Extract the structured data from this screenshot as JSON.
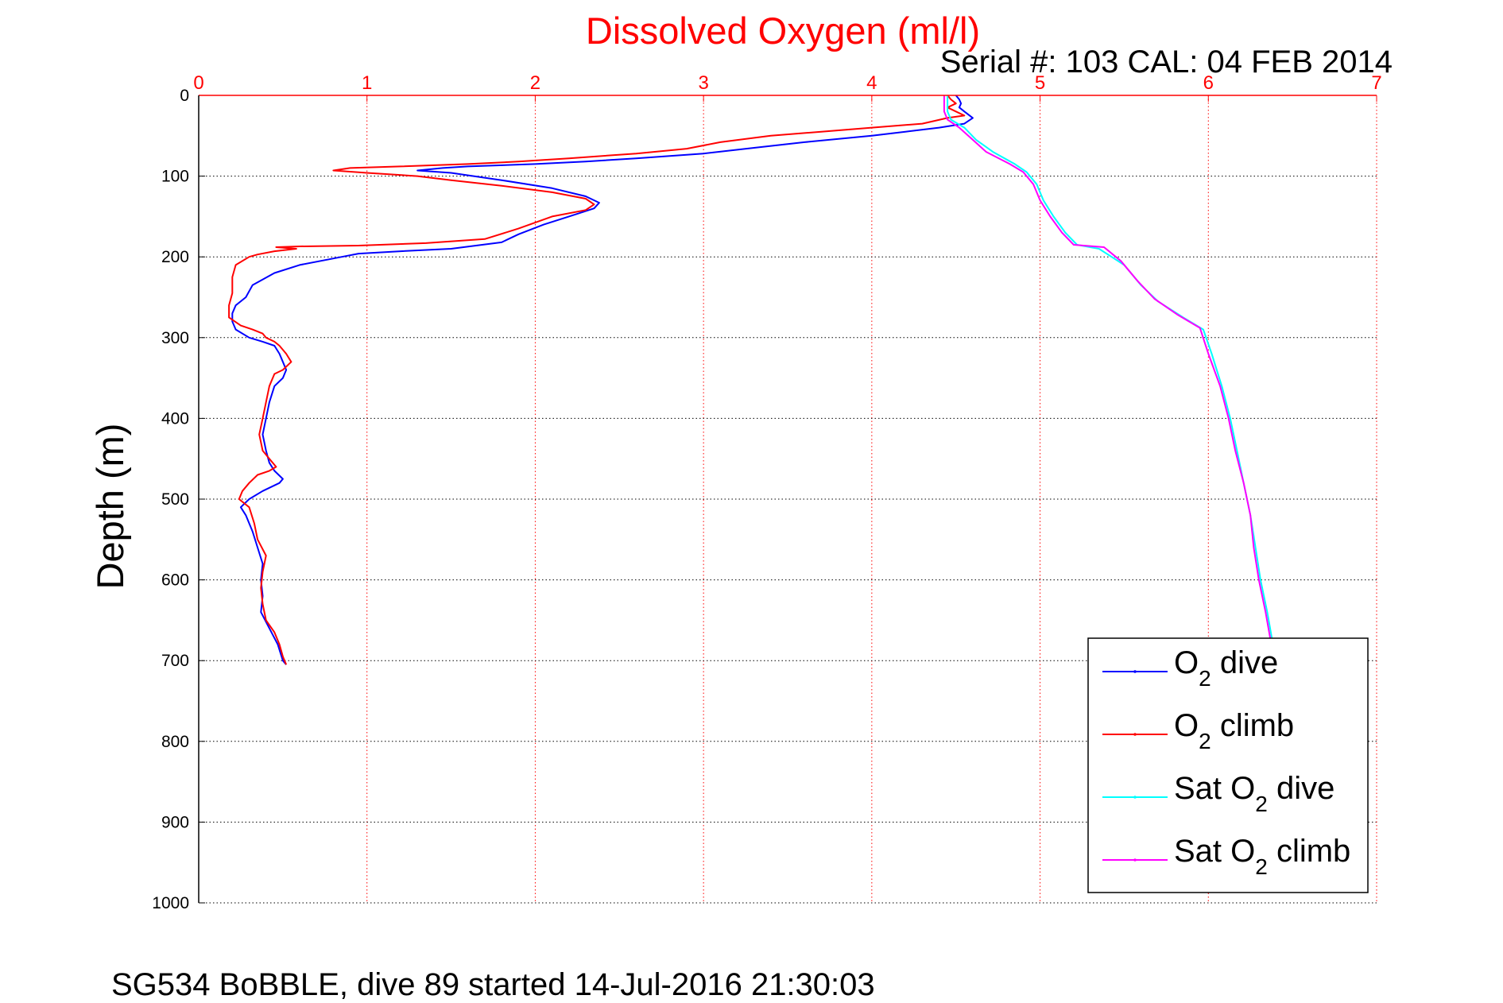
{
  "chart_data": {
    "type": "line",
    "title": "Dissolved Oxygen (ml/l)",
    "subtitle": "Serial #: 103  CAL: 04 FEB 2014",
    "footer": "SG534 BoBBLE, dive 89 started 14-Jul-2016 21:30:03",
    "xlabel": "",
    "ylabel": "Depth (m)",
    "x_axis_position": "top",
    "y_axis_reversed": true,
    "xlim": [
      0,
      7
    ],
    "ylim": [
      0,
      1000
    ],
    "x_ticks": [
      "0",
      "1",
      "2",
      "3",
      "4",
      "5",
      "6",
      "7"
    ],
    "y_ticks": [
      "0",
      "100",
      "200",
      "300",
      "400",
      "500",
      "600",
      "700",
      "800",
      "900",
      "1000"
    ],
    "grid": true,
    "legend_position": "bottom-right",
    "colors": {
      "title": "#ff0000",
      "x_axis": "#ff0000",
      "y_axis": "#000000",
      "o2_dive": "#0000ff",
      "o2_climb": "#ff0000",
      "sat_dive": "#00ffff",
      "sat_climb": "#ff00ff"
    },
    "series": [
      {
        "key": "o2_dive",
        "legend_main": "O",
        "legend_sub": "2",
        "legend_rest": " dive",
        "color": "#0000ff",
        "points": [
          [
            4.5,
            0
          ],
          [
            4.52,
            5
          ],
          [
            4.53,
            10
          ],
          [
            4.52,
            15
          ],
          [
            4.55,
            20
          ],
          [
            4.6,
            28
          ],
          [
            4.55,
            35
          ],
          [
            4.4,
            40
          ],
          [
            4.2,
            45
          ],
          [
            4.0,
            50
          ],
          [
            3.6,
            58
          ],
          [
            3.3,
            65
          ],
          [
            3.0,
            72
          ],
          [
            2.6,
            78
          ],
          [
            2.3,
            82
          ],
          [
            2.0,
            85
          ],
          [
            1.6,
            88
          ],
          [
            1.45,
            90
          ],
          [
            1.3,
            93
          ],
          [
            1.5,
            96
          ],
          [
            1.8,
            105
          ],
          [
            2.1,
            115
          ],
          [
            2.3,
            125
          ],
          [
            2.38,
            133
          ],
          [
            2.35,
            140
          ],
          [
            2.2,
            150
          ],
          [
            2.05,
            160
          ],
          [
            1.9,
            172
          ],
          [
            1.8,
            182
          ],
          [
            1.5,
            190
          ],
          [
            1.2,
            193
          ],
          [
            0.95,
            196
          ],
          [
            0.85,
            200
          ],
          [
            0.6,
            210
          ],
          [
            0.45,
            220
          ],
          [
            0.32,
            235
          ],
          [
            0.28,
            250
          ],
          [
            0.22,
            260
          ],
          [
            0.2,
            270
          ],
          [
            0.2,
            280
          ],
          [
            0.22,
            290
          ],
          [
            0.3,
            300
          ],
          [
            0.38,
            305
          ],
          [
            0.45,
            310
          ],
          [
            0.48,
            320
          ],
          [
            0.5,
            330
          ],
          [
            0.52,
            340
          ],
          [
            0.5,
            350
          ],
          [
            0.45,
            360
          ],
          [
            0.42,
            380
          ],
          [
            0.4,
            400
          ],
          [
            0.38,
            420
          ],
          [
            0.4,
            440
          ],
          [
            0.42,
            455
          ],
          [
            0.45,
            465
          ],
          [
            0.5,
            475
          ],
          [
            0.48,
            480
          ],
          [
            0.38,
            490
          ],
          [
            0.3,
            500
          ],
          [
            0.25,
            510
          ],
          [
            0.28,
            520
          ],
          [
            0.32,
            540
          ],
          [
            0.35,
            560
          ],
          [
            0.38,
            580
          ],
          [
            0.37,
            600
          ],
          [
            0.38,
            620
          ],
          [
            0.37,
            640
          ],
          [
            0.42,
            660
          ],
          [
            0.47,
            680
          ],
          [
            0.5,
            700
          ],
          [
            0.52,
            705
          ]
        ]
      },
      {
        "key": "o2_climb",
        "legend_main": "O",
        "legend_sub": "2",
        "legend_rest": " climb",
        "color": "#ff0000",
        "points": [
          [
            4.45,
            0
          ],
          [
            4.47,
            5
          ],
          [
            4.5,
            10
          ],
          [
            4.45,
            15
          ],
          [
            4.5,
            20
          ],
          [
            4.55,
            25
          ],
          [
            4.45,
            28
          ],
          [
            4.3,
            35
          ],
          [
            4.0,
            40
          ],
          [
            3.7,
            45
          ],
          [
            3.4,
            50
          ],
          [
            3.1,
            58
          ],
          [
            2.9,
            66
          ],
          [
            2.6,
            72
          ],
          [
            2.2,
            78
          ],
          [
            1.9,
            82
          ],
          [
            1.6,
            85
          ],
          [
            1.2,
            88
          ],
          [
            0.9,
            90
          ],
          [
            0.8,
            93
          ],
          [
            1.0,
            96
          ],
          [
            1.3,
            100
          ],
          [
            1.5,
            105
          ],
          [
            1.8,
            112
          ],
          [
            2.1,
            120
          ],
          [
            2.3,
            128
          ],
          [
            2.35,
            135
          ],
          [
            2.3,
            142
          ],
          [
            2.1,
            150
          ],
          [
            1.9,
            165
          ],
          [
            1.7,
            178
          ],
          [
            1.35,
            183
          ],
          [
            0.95,
            186
          ],
          [
            0.6,
            187
          ],
          [
            0.46,
            188
          ],
          [
            0.58,
            190
          ],
          [
            0.45,
            193
          ],
          [
            0.35,
            197
          ],
          [
            0.3,
            200
          ],
          [
            0.22,
            210
          ],
          [
            0.2,
            225
          ],
          [
            0.2,
            245
          ],
          [
            0.18,
            260
          ],
          [
            0.18,
            275
          ],
          [
            0.25,
            285
          ],
          [
            0.32,
            290
          ],
          [
            0.38,
            295
          ],
          [
            0.4,
            300
          ],
          [
            0.45,
            305
          ],
          [
            0.48,
            310
          ],
          [
            0.52,
            320
          ],
          [
            0.55,
            330
          ],
          [
            0.5,
            340
          ],
          [
            0.45,
            345
          ],
          [
            0.42,
            360
          ],
          [
            0.4,
            380
          ],
          [
            0.38,
            400
          ],
          [
            0.36,
            420
          ],
          [
            0.38,
            440
          ],
          [
            0.42,
            450
          ],
          [
            0.46,
            460
          ],
          [
            0.42,
            465
          ],
          [
            0.35,
            470
          ],
          [
            0.3,
            480
          ],
          [
            0.26,
            490
          ],
          [
            0.24,
            500
          ],
          [
            0.3,
            510
          ],
          [
            0.33,
            530
          ],
          [
            0.35,
            550
          ],
          [
            0.4,
            570
          ],
          [
            0.38,
            590
          ],
          [
            0.37,
            610
          ],
          [
            0.38,
            630
          ],
          [
            0.4,
            650
          ],
          [
            0.45,
            665
          ],
          [
            0.48,
            680
          ],
          [
            0.5,
            695
          ],
          [
            0.52,
            705
          ]
        ]
      },
      {
        "key": "sat_dive",
        "legend_main": "Sat O",
        "legend_sub": "2",
        "legend_rest": " dive",
        "color": "#00ffff",
        "points": [
          [
            4.45,
            0
          ],
          [
            4.45,
            10
          ],
          [
            4.45,
            20
          ],
          [
            4.47,
            30
          ],
          [
            4.55,
            40
          ],
          [
            4.62,
            55
          ],
          [
            4.72,
            70
          ],
          [
            4.85,
            85
          ],
          [
            4.92,
            95
          ],
          [
            4.98,
            110
          ],
          [
            5.02,
            130
          ],
          [
            5.08,
            150
          ],
          [
            5.15,
            170
          ],
          [
            5.22,
            185
          ],
          [
            5.35,
            190
          ],
          [
            5.5,
            210
          ],
          [
            5.6,
            235
          ],
          [
            5.7,
            255
          ],
          [
            5.85,
            275
          ],
          [
            5.97,
            290
          ],
          [
            6.02,
            320
          ],
          [
            6.08,
            360
          ],
          [
            6.13,
            400
          ],
          [
            6.17,
            440
          ],
          [
            6.21,
            480
          ],
          [
            6.25,
            520
          ],
          [
            6.28,
            560
          ],
          [
            6.31,
            600
          ],
          [
            6.35,
            640
          ],
          [
            6.38,
            675
          ]
        ]
      },
      {
        "key": "sat_climb",
        "legend_main": "Sat O",
        "legend_sub": "2",
        "legend_rest": " climb",
        "color": "#ff00ff",
        "points": [
          [
            4.43,
            0
          ],
          [
            4.43,
            10
          ],
          [
            4.43,
            20
          ],
          [
            4.45,
            30
          ],
          [
            4.52,
            40
          ],
          [
            4.6,
            55
          ],
          [
            4.68,
            70
          ],
          [
            4.82,
            85
          ],
          [
            4.9,
            95
          ],
          [
            4.96,
            110
          ],
          [
            5.0,
            130
          ],
          [
            5.06,
            150
          ],
          [
            5.13,
            170
          ],
          [
            5.2,
            185
          ],
          [
            5.38,
            188
          ],
          [
            5.48,
            205
          ],
          [
            5.58,
            230
          ],
          [
            5.68,
            252
          ],
          [
            5.82,
            272
          ],
          [
            5.95,
            288
          ],
          [
            6.0,
            320
          ],
          [
            6.07,
            360
          ],
          [
            6.12,
            400
          ],
          [
            6.16,
            440
          ],
          [
            6.21,
            480
          ],
          [
            6.25,
            520
          ],
          [
            6.27,
            560
          ],
          [
            6.3,
            600
          ],
          [
            6.34,
            640
          ],
          [
            6.37,
            675
          ]
        ]
      }
    ]
  }
}
